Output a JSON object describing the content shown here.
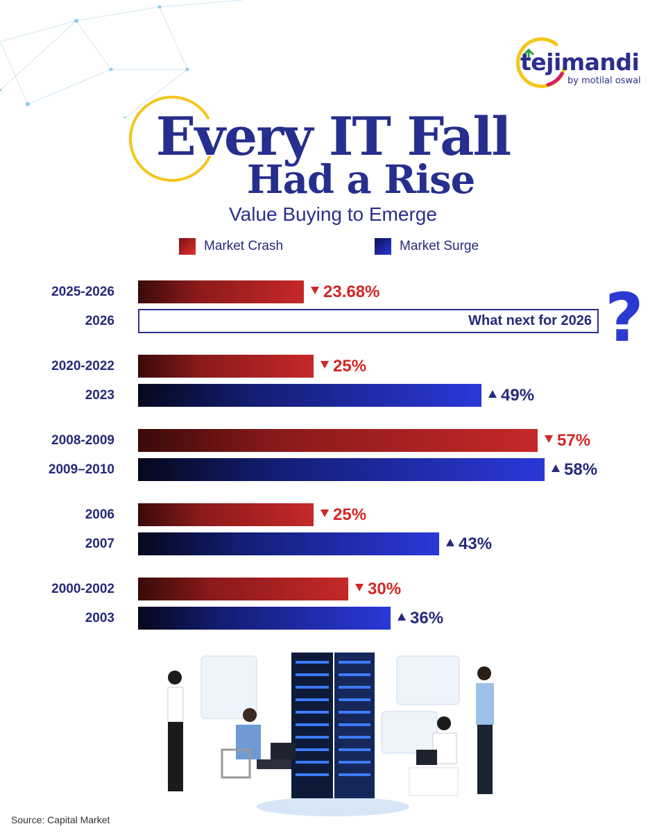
{
  "brand": {
    "name": "tejimandi",
    "byline": "by motilal oswal"
  },
  "header": {
    "title_line1": "Every IT Fall",
    "title_line2": "Had a Rise",
    "subtitle": "Value Buying to Emerge"
  },
  "legend": {
    "crash": "Market Crash",
    "surge": "Market Surge"
  },
  "callout": {
    "text": "What next for 2026",
    "glyph": "?"
  },
  "colors": {
    "crash": "#c62828",
    "surge": "#2a38d8",
    "navy": "#262a7a",
    "accent_ring": "#f5c518"
  },
  "chart_data": {
    "type": "bar",
    "orientation": "horizontal",
    "bars": [
      {
        "period": "2025-2026",
        "kind": "crash",
        "value": 23.68,
        "label": "23.68%"
      },
      {
        "period": "2026",
        "kind": "question",
        "label": "What next for 2026"
      },
      {
        "period": "2020-2022",
        "kind": "crash",
        "value": 25,
        "label": "25%"
      },
      {
        "period": "2023",
        "kind": "surge",
        "value": 49,
        "label": "49%"
      },
      {
        "period": "2008-2009",
        "kind": "crash",
        "value": 57,
        "label": "57%"
      },
      {
        "period": "2009–2010",
        "kind": "surge",
        "value": 58,
        "label": "58%"
      },
      {
        "period": "2006",
        "kind": "crash",
        "value": 25,
        "label": "25%"
      },
      {
        "period": "2007",
        "kind": "surge",
        "value": 43,
        "label": "43%"
      },
      {
        "period": "2000-2002",
        "kind": "crash",
        "value": 30,
        "label": "30%"
      },
      {
        "period": "2003",
        "kind": "surge",
        "value": 36,
        "label": "36%"
      }
    ]
  },
  "footer": {
    "source": "Source: Capital Market"
  }
}
